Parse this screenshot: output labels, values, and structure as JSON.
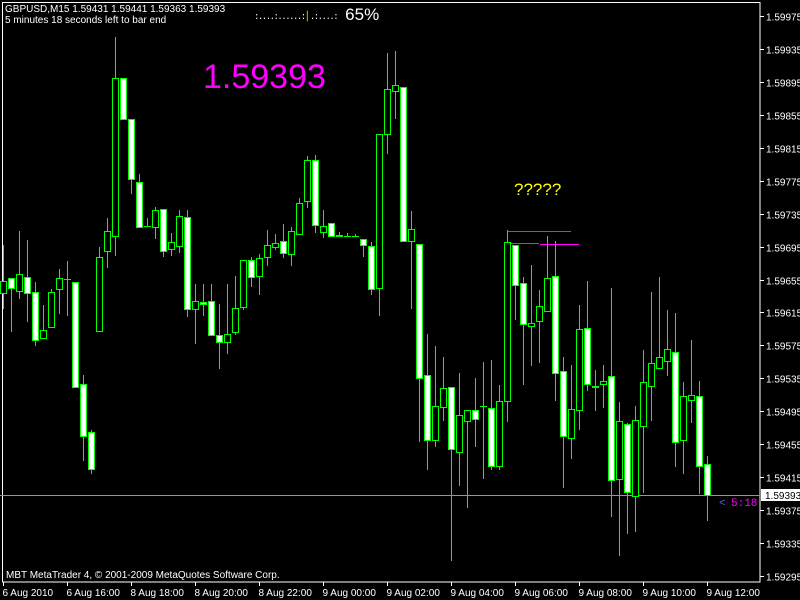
{
  "header": {
    "symbol_line": "GBPUSD,M15  1.59431 1.59441 1.59363 1.59393",
    "timer_line": "5 minutes 18 seconds left to bar end"
  },
  "indicator": {
    "dots_left": ":....:......:",
    "marker": "|",
    "dots_right": ".:....:",
    "percent": "65%",
    "marker_color": "#ff9900"
  },
  "annotations": {
    "big_price": "1.59393",
    "big_price_color": "#ff00ff",
    "question": "?????",
    "question_color": "#ffff00",
    "countdown_arrow": "<",
    "countdown": "5:18",
    "line_color": "#ff00ff",
    "lines": [
      {
        "price": 1.59714,
        "from_candle": 63,
        "to_candle": 71
      },
      {
        "price": 1.59699,
        "from_candle": 63,
        "to_candle": 67
      },
      {
        "price": 1.59698,
        "from_candle": 67,
        "to_candle": 72
      }
    ]
  },
  "footer": {
    "copyright": "MBT MetaTrader 4, © 2001-2009 MetaQuotes Software Corp."
  },
  "chart_data": {
    "type": "candlestick",
    "symbol": "GBPUSD",
    "timeframe": "M15",
    "ylim": [
      1.59295,
      1.59975
    ],
    "grid": false,
    "bull_color": "#00ff00",
    "bear_fill": "#ffffff",
    "bid_line_color": "#8899aa",
    "current_price": 1.59393,
    "y_ticks": [
      "1.59975",
      "1.59935",
      "1.59895",
      "1.59855",
      "1.59815",
      "1.59775",
      "1.59735",
      "1.59695",
      "1.59655",
      "1.59615",
      "1.59575",
      "1.59535",
      "1.59495",
      "1.59455",
      "1.59415",
      "1.59375",
      "1.59335",
      "1.59295"
    ],
    "x_ticks": [
      "6 Aug 2010",
      "6 Aug 16:00",
      "8 Aug 18:00",
      "8 Aug 20:00",
      "8 Aug 22:00",
      "9 Aug 00:00",
      "9 Aug 02:00",
      "9 Aug 04:00",
      "9 Aug 06:00",
      "9 Aug 08:00",
      "9 Aug 10:00",
      "9 Aug 12:00"
    ],
    "candles_ohlc": [
      [
        1.59639,
        1.59697,
        1.5962,
        1.59653
      ],
      [
        1.59657,
        1.59657,
        1.59593,
        1.59645
      ],
      [
        1.59641,
        1.59714,
        1.59633,
        1.59662
      ],
      [
        1.59658,
        1.59703,
        1.59605,
        1.59639
      ],
      [
        1.5964,
        1.59652,
        1.59576,
        1.59582
      ],
      [
        1.59584,
        1.59624,
        1.59584,
        1.59594
      ],
      [
        1.59597,
        1.59644,
        1.59597,
        1.5964
      ],
      [
        1.59644,
        1.59668,
        1.59614,
        1.59657
      ],
      [
        1.59656,
        1.59678,
        1.59612,
        1.59656
      ],
      [
        1.59652,
        1.59652,
        1.59525,
        1.59525
      ],
      [
        1.59528,
        1.59539,
        1.59436,
        1.59465
      ],
      [
        1.5947,
        1.59472,
        1.5942,
        1.59425
      ],
      [
        1.59593,
        1.59695,
        1.59593,
        1.59682
      ],
      [
        1.5969,
        1.5973,
        1.5967,
        1.59714
      ],
      [
        1.59708,
        1.5995,
        1.59685,
        1.599
      ],
      [
        1.599,
        1.599,
        1.5985,
        1.5985
      ],
      [
        1.5985,
        1.5985,
        1.5976,
        1.59777
      ],
      [
        1.59773,
        1.59783,
        1.59719,
        1.59719
      ],
      [
        1.5972,
        1.5973,
        1.5972,
        1.5972
      ],
      [
        1.59719,
        1.59743,
        1.59705,
        1.59739
      ],
      [
        1.59741,
        1.59741,
        1.59684,
        1.5969
      ],
      [
        1.59692,
        1.59712,
        1.59685,
        1.59701
      ],
      [
        1.59696,
        1.59739,
        1.59689,
        1.59732
      ],
      [
        1.59731,
        1.59739,
        1.59611,
        1.59619
      ],
      [
        1.59619,
        1.5965,
        1.59578,
        1.59629
      ],
      [
        1.59628,
        1.5965,
        1.59612,
        1.59625
      ],
      [
        1.59629,
        1.5965,
        1.59588,
        1.59588
      ],
      [
        1.59588,
        1.59625,
        1.59548,
        1.59579
      ],
      [
        1.59579,
        1.5965,
        1.59566,
        1.59589
      ],
      [
        1.59591,
        1.59659,
        1.59589,
        1.5962
      ],
      [
        1.59622,
        1.59679,
        1.59619,
        1.59679
      ],
      [
        1.59679,
        1.59682,
        1.59647,
        1.59658
      ],
      [
        1.59659,
        1.59686,
        1.59637,
        1.59681
      ],
      [
        1.59682,
        1.59715,
        1.59673,
        1.59697
      ],
      [
        1.59695,
        1.5971,
        1.59692,
        1.59699
      ],
      [
        1.59702,
        1.59722,
        1.59682,
        1.59687
      ],
      [
        1.59686,
        1.59719,
        1.59673,
        1.59714
      ],
      [
        1.5971,
        1.59754,
        1.5971,
        1.59748
      ],
      [
        1.5975,
        1.59805,
        1.59743,
        1.598
      ],
      [
        1.598,
        1.59806,
        1.59713,
        1.59721
      ],
      [
        1.59713,
        1.59739,
        1.59707,
        1.5972
      ],
      [
        1.59724,
        1.59724,
        1.59708,
        1.59708
      ],
      [
        1.59709,
        1.59713,
        1.59708,
        1.59708
      ],
      [
        1.59708,
        1.59712,
        1.59708,
        1.59708
      ],
      [
        1.59708,
        1.5971,
        1.59708,
        1.59708
      ],
      [
        1.59704,
        1.59704,
        1.59684,
        1.59697
      ],
      [
        1.59696,
        1.59701,
        1.59637,
        1.59644
      ],
      [
        1.59645,
        1.59832,
        1.59612,
        1.59832
      ],
      [
        1.59832,
        1.5993,
        1.59809,
        1.59886
      ],
      [
        1.59884,
        1.59932,
        1.59851,
        1.59891
      ],
      [
        1.59889,
        1.59889,
        1.59702,
        1.59702
      ],
      [
        1.59702,
        1.59738,
        1.5962,
        1.59716
      ],
      [
        1.59698,
        1.59698,
        1.59459,
        1.59536
      ],
      [
        1.59539,
        1.59589,
        1.59425,
        1.5946
      ],
      [
        1.5946,
        1.59574,
        1.59453,
        1.59502
      ],
      [
        1.595,
        1.59561,
        1.59485,
        1.59523
      ],
      [
        1.59525,
        1.59525,
        1.59315,
        1.59449
      ],
      [
        1.59446,
        1.59542,
        1.59406,
        1.59491
      ],
      [
        1.59483,
        1.59496,
        1.59379,
        1.59496
      ],
      [
        1.59496,
        1.59536,
        1.59453,
        1.59486
      ],
      [
        1.59502,
        1.59555,
        1.59414,
        1.59502
      ],
      [
        1.59499,
        1.59557,
        1.59425,
        1.59428
      ],
      [
        1.59429,
        1.59527,
        1.59425,
        1.59508
      ],
      [
        1.59508,
        1.59715,
        1.59483,
        1.59701
      ],
      [
        1.59697,
        1.59697,
        1.59607,
        1.59648
      ],
      [
        1.59651,
        1.59658,
        1.59528,
        1.59601
      ],
      [
        1.59599,
        1.59673,
        1.59551,
        1.59602
      ],
      [
        1.59605,
        1.59642,
        1.59555,
        1.59623
      ],
      [
        1.59617,
        1.59708,
        1.59617,
        1.59657
      ],
      [
        1.59659,
        1.59702,
        1.59509,
        1.59542
      ],
      [
        1.59544,
        1.59561,
        1.59403,
        1.59465
      ],
      [
        1.59463,
        1.59551,
        1.59438,
        1.59498
      ],
      [
        1.59496,
        1.59624,
        1.59474,
        1.59595
      ],
      [
        1.59596,
        1.59653,
        1.59521,
        1.59528
      ],
      [
        1.59526,
        1.59545,
        1.59497,
        1.59525
      ],
      [
        1.59528,
        1.59551,
        1.595,
        1.59532
      ],
      [
        1.59538,
        1.59645,
        1.59368,
        1.59411
      ],
      [
        1.59413,
        1.59506,
        1.59321,
        1.59483
      ],
      [
        1.5948,
        1.59481,
        1.59347,
        1.59397
      ],
      [
        1.59392,
        1.59502,
        1.5935,
        1.59485
      ],
      [
        1.59477,
        1.5957,
        1.59397,
        1.5953
      ],
      [
        1.59526,
        1.5964,
        1.59485,
        1.59554
      ],
      [
        1.59548,
        1.59658,
        1.59548,
        1.59561
      ],
      [
        1.59556,
        1.59618,
        1.59539,
        1.59571
      ],
      [
        1.59567,
        1.59614,
        1.59428,
        1.59458
      ],
      [
        1.5946,
        1.5953,
        1.5942,
        1.59513
      ],
      [
        1.59509,
        1.59582,
        1.59482,
        1.59515
      ],
      [
        1.59513,
        1.59532,
        1.59396,
        1.59428
      ],
      [
        1.59431,
        1.59441,
        1.59363,
        1.59393
      ]
    ]
  }
}
